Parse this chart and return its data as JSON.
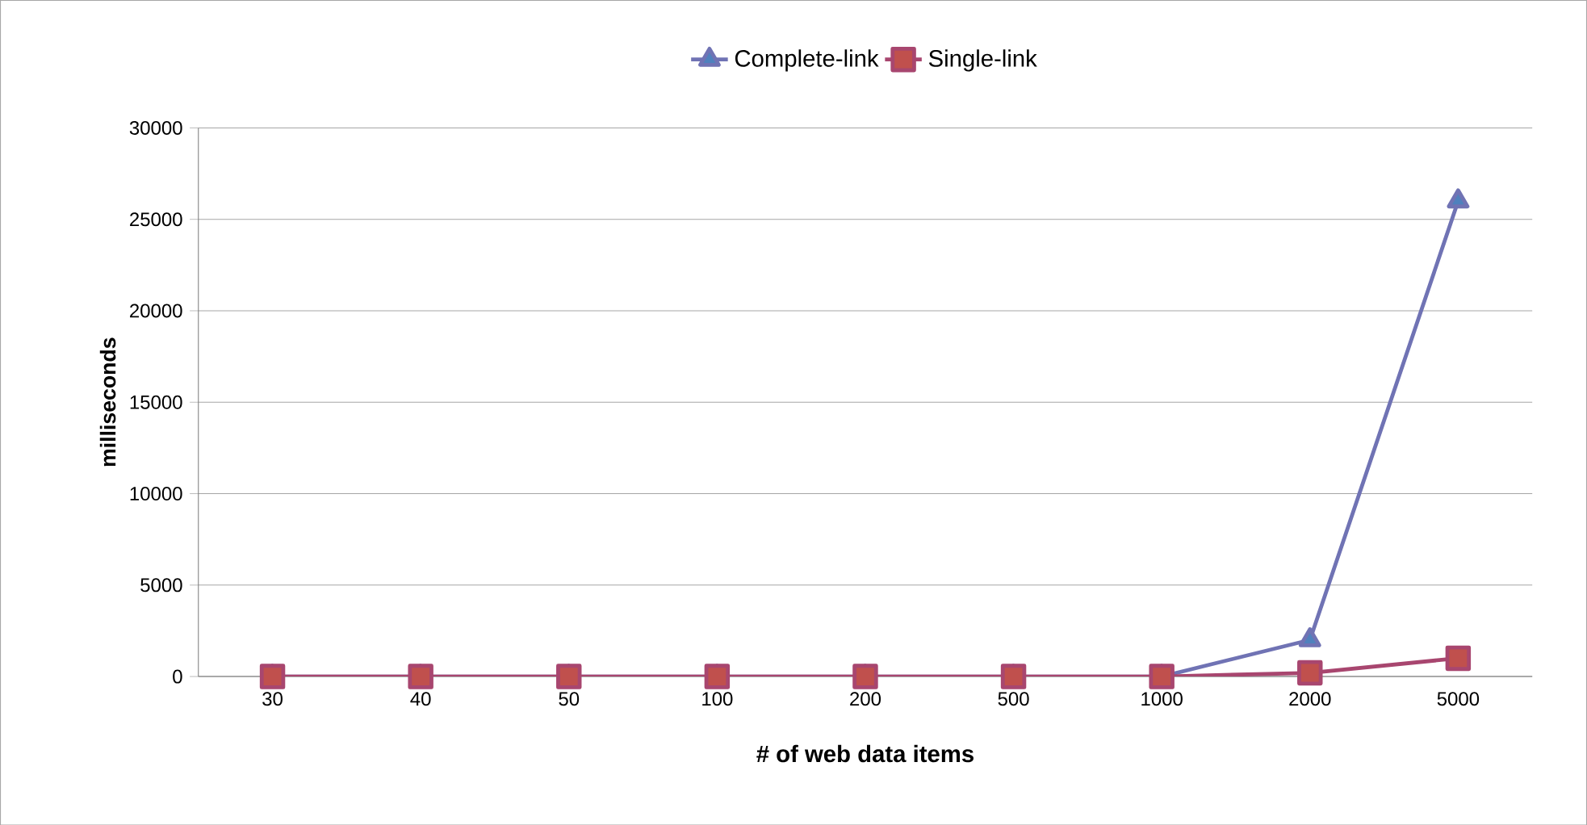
{
  "chart_data": {
    "type": "line",
    "xlabel": "# of web data items",
    "ylabel": "milliseconds",
    "categories": [
      "30",
      "40",
      "50",
      "100",
      "200",
      "500",
      "1000",
      "2000",
      "5000"
    ],
    "series": [
      {
        "name": "Complete-link",
        "color": "#7073b4",
        "marker": "triangle",
        "values": [
          0,
          0,
          0,
          0,
          0,
          0,
          0,
          2000,
          26000
        ]
      },
      {
        "name": "Single-link",
        "color": "#a8466f",
        "marker": "square",
        "values": [
          0,
          0,
          0,
          0,
          0,
          0,
          0,
          200,
          1000
        ]
      }
    ],
    "ylim": [
      0,
      30000
    ],
    "yticks": [
      0,
      5000,
      10000,
      15000,
      20000,
      25000,
      30000
    ],
    "grid": "y",
    "legend": "top",
    "line_style": "solid"
  }
}
